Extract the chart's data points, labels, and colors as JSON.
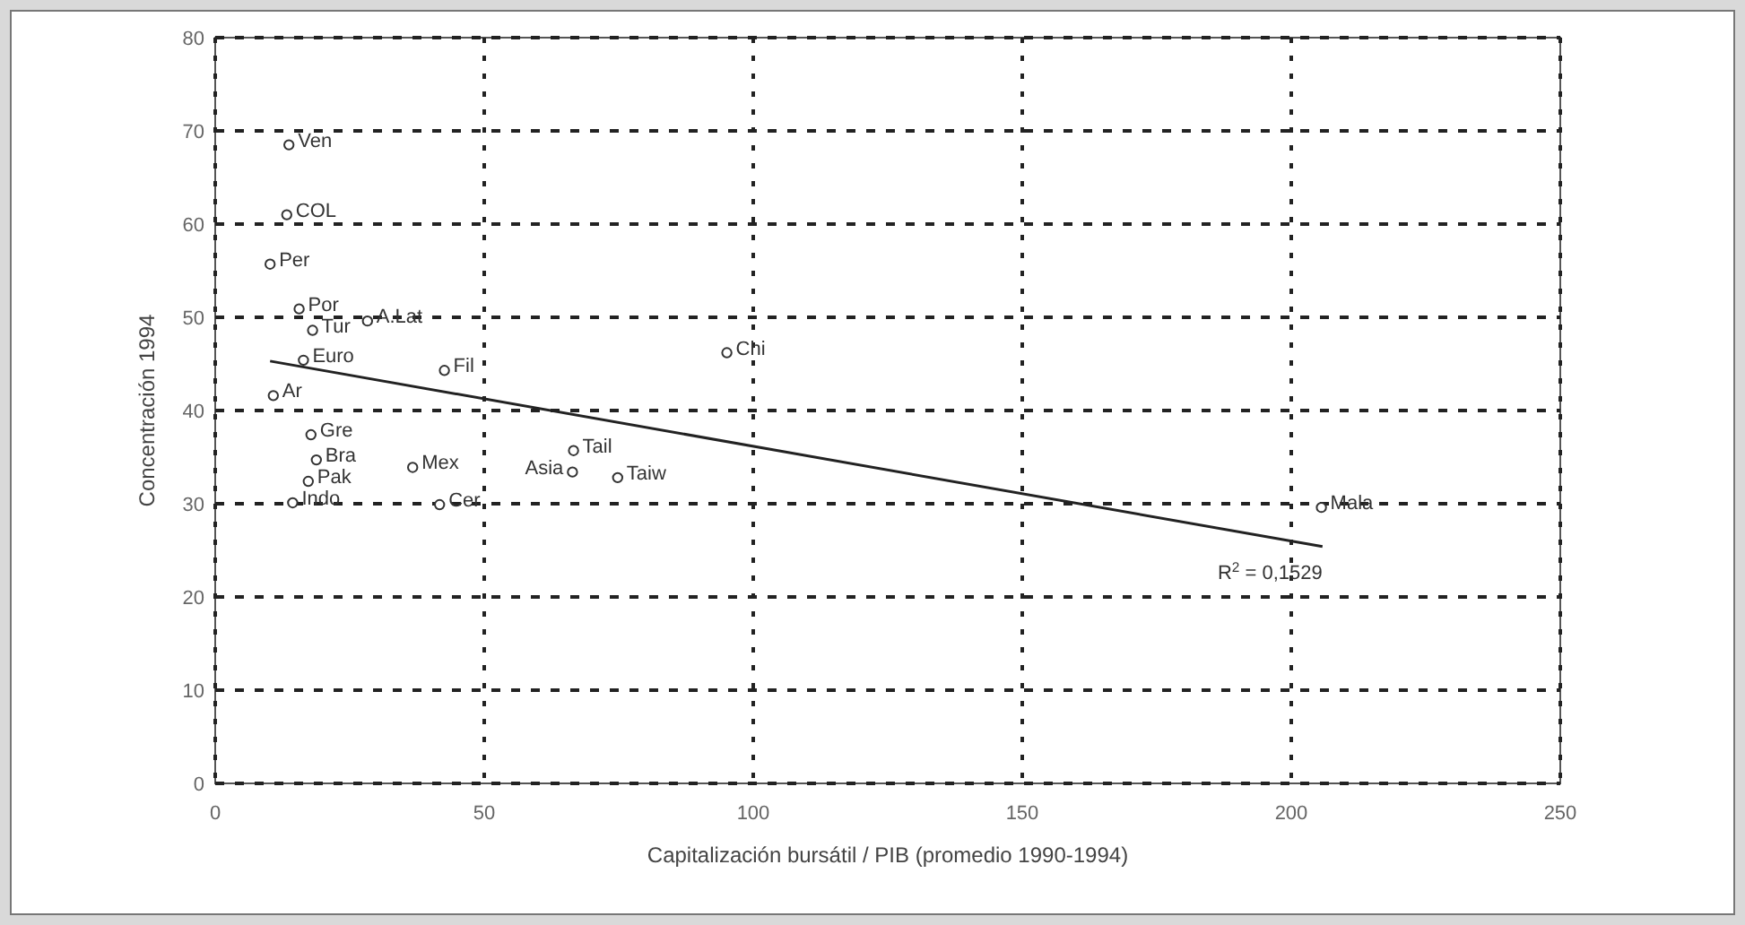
{
  "chart_data": {
    "type": "scatter",
    "xlabel": "Capitalización bursátil / PIB (promedio 1990-1994)",
    "ylabel": "Concentración 1994",
    "xlim": [
      0,
      250
    ],
    "xticks": [
      0,
      50,
      100,
      150,
      200,
      250
    ],
    "ylim": [
      0,
      80
    ],
    "yticks": [
      0,
      10,
      20,
      30,
      40,
      50,
      60,
      70,
      80
    ],
    "grid": true,
    "marker": "circle",
    "series": [
      {
        "color": "#333333",
        "x": [
          13.7,
          13.3,
          10.2,
          15.6,
          28.3,
          18.1,
          16.4,
          42.6,
          10.8,
          17.8,
          18.8,
          17.3,
          36.7,
          14.4,
          41.7,
          95.1,
          66.6,
          66.4,
          74.8,
          205.6
        ],
        "values": [
          68.5,
          61.0,
          55.7,
          50.9,
          49.6,
          48.6,
          45.4,
          44.3,
          41.6,
          37.4,
          34.7,
          32.4,
          33.9,
          30.1,
          29.9,
          46.2,
          35.7,
          33.4,
          32.8,
          29.6
        ]
      },
      {
        "type": "line",
        "marker": "none",
        "color": "#222222",
        "x": [
          10.2,
          205.8
        ],
        "values": [
          45.3,
          25.4
        ]
      }
    ],
    "annotations": [
      {
        "text": "Ven",
        "x": 13.7,
        "y": 68.5
      },
      {
        "text": "COL",
        "x": 13.3,
        "y": 61.0
      },
      {
        "text": "Per",
        "x": 10.2,
        "y": 55.7
      },
      {
        "text": "Por",
        "x": 15.6,
        "y": 50.9
      },
      {
        "text": "A.Lat",
        "x": 28.3,
        "y": 49.6
      },
      {
        "text": "Tur",
        "x": 18.1,
        "y": 48.6
      },
      {
        "text": "Euro",
        "x": 16.4,
        "y": 45.4
      },
      {
        "text": "Fil",
        "x": 42.6,
        "y": 44.3
      },
      {
        "text": "Ar",
        "x": 10.8,
        "y": 41.6
      },
      {
        "text": "Gre",
        "x": 17.8,
        "y": 37.4
      },
      {
        "text": "Bra",
        "x": 18.8,
        "y": 34.7
      },
      {
        "text": "Pak",
        "x": 17.3,
        "y": 32.4
      },
      {
        "text": "Mex",
        "x": 36.7,
        "y": 33.9
      },
      {
        "text": "Indo",
        "x": 14.4,
        "y": 30.1
      },
      {
        "text": "Cer",
        "x": 41.7,
        "y": 29.9
      },
      {
        "text": "Chi",
        "x": 95.1,
        "y": 46.2
      },
      {
        "text": "Tail",
        "x": 66.6,
        "y": 35.7
      },
      {
        "text": "Asia",
        "x": 66.4,
        "y": 33.4
      },
      {
        "text": "Taiw",
        "x": 74.8,
        "y": 32.8
      },
      {
        "text": "Mala",
        "x": 205.6,
        "y": 29.6
      },
      "R$^{2}$ = 0,1529"
    ]
  }
}
